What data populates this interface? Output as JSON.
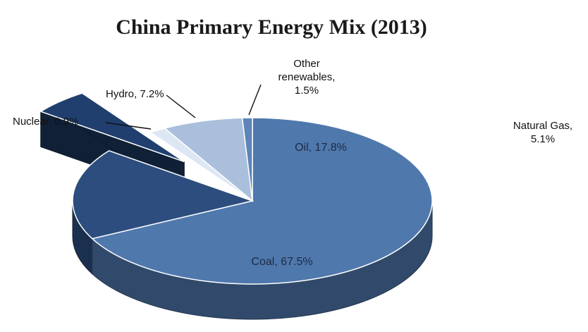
{
  "chart_data": {
    "type": "pie",
    "title": "China Primary Energy Mix (2013)",
    "slices": [
      {
        "name": "Coal",
        "value": 67.5,
        "label": "Coal, 67.5%",
        "color": "#4f78ad"
      },
      {
        "name": "Oil",
        "value": 17.8,
        "label": "Oil, 17.8%",
        "color": "#2c4d7e"
      },
      {
        "name": "Natural Gas",
        "value": 5.1,
        "label_lines": [
          "Natural Gas,",
          "5.1%"
        ],
        "color": "#203f6e"
      },
      {
        "name": "Other renewables",
        "value": 1.5,
        "label_lines": [
          "Other",
          "renewables,",
          "1.5%"
        ],
        "color": "#dde7f3"
      },
      {
        "name": "Hydro",
        "value": 7.2,
        "label": "Hydro, 7.2%",
        "color": "#a9bfdc"
      },
      {
        "name": "Nuclear",
        "value": 0.9,
        "label": "Nuclear, 0.9%",
        "color": "#5d84b8"
      }
    ],
    "exploded_slice": "Natural Gas",
    "style": "3d",
    "legend": "none"
  }
}
